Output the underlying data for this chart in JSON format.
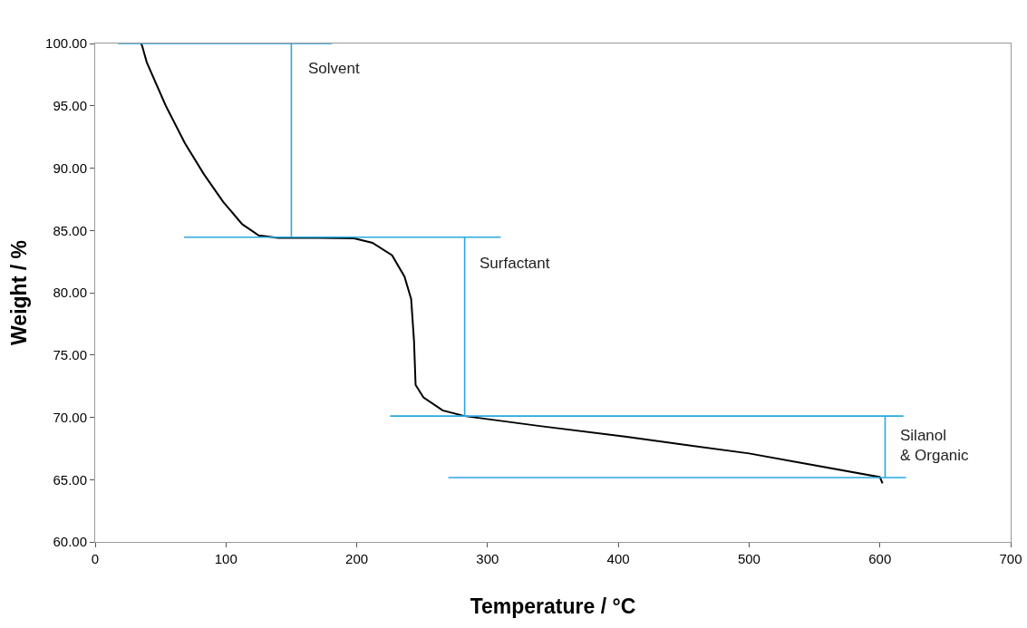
{
  "chart_data": {
    "type": "line",
    "xlabel": "Temperature / °C",
    "ylabel": "Weight / %",
    "xlim": [
      0,
      700
    ],
    "xticks": [
      0,
      100,
      200,
      300,
      400,
      500,
      600,
      700
    ],
    "ylim": [
      60,
      100
    ],
    "yticks": [
      {
        "value": 60,
        "label": "60.00"
      },
      {
        "value": 65,
        "label": "65.00"
      },
      {
        "value": 70,
        "label": "70.00"
      },
      {
        "value": 75,
        "label": "75.00"
      },
      {
        "value": 80,
        "label": "80.00"
      },
      {
        "value": 85,
        "label": "85.00"
      },
      {
        "value": 90,
        "label": "90.00"
      },
      {
        "value": 95,
        "label": "95.00"
      },
      {
        "value": 100,
        "label": "100.00"
      }
    ],
    "marker": "none",
    "line_style": "solid",
    "series": [
      {
        "color": "#000000",
        "x": [
          35,
          35.8,
          39.4,
          54,
          68.6,
          83.2,
          97.8,
          112.4,
          125,
          140,
          170,
          198,
          212,
          227,
          236.5,
          241.6,
          243.8,
          245,
          251,
          265.7,
          282.5,
          340,
          405,
          500,
          600,
          602
        ],
        "values": [
          100,
          99.85,
          98.5,
          95,
          92,
          89.5,
          87.3,
          85.5,
          84.6,
          84.4,
          84.4,
          84.37,
          84,
          83,
          81.3,
          79.5,
          76.1,
          72.6,
          71.6,
          70.55,
          70.1,
          69.3,
          68.45,
          67.1,
          65.2,
          64.7
        ]
      },
      {
        "color": "#29a8e0",
        "x": [
          17.5,
          181
        ],
        "values": [
          100,
          100
        ]
      },
      {
        "color": "#29a8e0",
        "x": [
          150,
          150
        ],
        "values": [
          100,
          84.45
        ]
      },
      {
        "color": "#29a8e0",
        "x": [
          68,
          310
        ],
        "values": [
          84.45,
          84.45
        ]
      },
      {
        "color": "#29a8e0",
        "x": [
          282.5,
          282.5
        ],
        "values": [
          84.45,
          70.1
        ]
      },
      {
        "color": "#29a8e0",
        "x": [
          225.5,
          618
        ],
        "values": [
          70.1,
          70.1
        ]
      },
      {
        "color": "#29a8e0",
        "x": [
          604,
          604
        ],
        "values": [
          70.1,
          65.16
        ]
      },
      {
        "color": "#29a8e0",
        "x": [
          270,
          620
        ],
        "values": [
          65.16,
          65.16
        ]
      }
    ],
    "annotations": [
      "Solvent",
      "Surfactant",
      "Silanol\n& Organic"
    ]
  }
}
